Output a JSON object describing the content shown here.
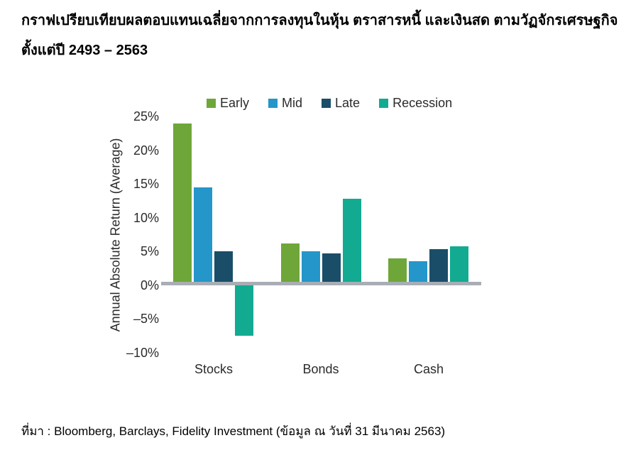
{
  "title": {
    "line1": "กราฟเปรียบเทียบผลตอบแทนเฉลี่ยจากการลงทุนในหุ้น ตราสารหนี้ และเงินสด ตามวัฏจักรเศรษฐกิจ",
    "line2": "ตั้งแต่ปี 2493 – 2563"
  },
  "source": "ที่มา : Bloomberg, Barclays, Fidelity Investment (ข้อมูล ณ วันที่ 31 มีนาคม 2563)",
  "chart_data": {
    "type": "bar",
    "title": "",
    "categories": [
      "Stocks",
      "Bonds",
      "Cash"
    ],
    "series": [
      {
        "name": "Early",
        "color": "#6FA63A",
        "values": [
          24.0,
          6.2,
          4.0
        ]
      },
      {
        "name": "Mid",
        "color": "#2496C9",
        "values": [
          14.5,
          5.0,
          3.6
        ]
      },
      {
        "name": "Late",
        "color": "#1A4E68",
        "values": [
          5.0,
          4.7,
          5.4
        ]
      },
      {
        "name": "Recession",
        "color": "#12AB92",
        "values": [
          -7.5,
          12.8,
          5.8
        ]
      }
    ],
    "xlabel": "",
    "ylabel": "Annual Absolute Return (Average)",
    "ylim": [
      -10,
      25
    ],
    "yticks": [
      25,
      20,
      15,
      10,
      5,
      0,
      -5,
      -10
    ],
    "ytick_labels": [
      "25%",
      "20%",
      "15%",
      "10%",
      "5%",
      "0%",
      "–5%",
      "–10%"
    ],
    "legend_position": "top",
    "grid": false,
    "axis_line_color": "#A9ADB5",
    "text_color": "#2B2B2B"
  }
}
